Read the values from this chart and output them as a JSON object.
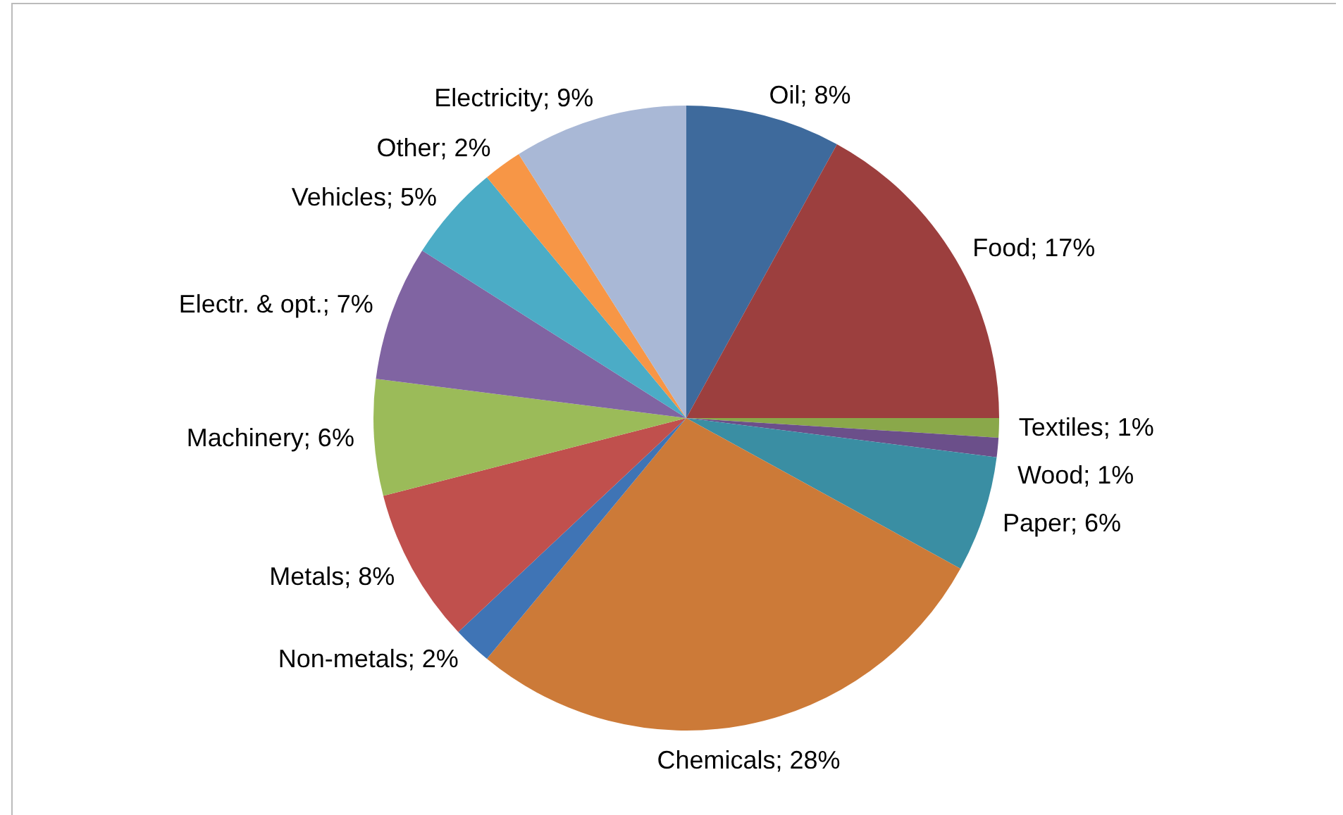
{
  "chart_data": {
    "type": "pie",
    "categories": [
      "Oil",
      "Food",
      "Textiles",
      "Wood",
      "Paper",
      "Chemicals",
      "Non-metals",
      "Metals",
      "Machinery",
      "Electr. & opt.",
      "Vehicles",
      "Other",
      "Electricity"
    ],
    "values": [
      8,
      17,
      1,
      1,
      6,
      28,
      2,
      8,
      6,
      7,
      5,
      2,
      9
    ],
    "colors": [
      "#3e6a9c",
      "#9c3f3e",
      "#8aa84a",
      "#6b4f8a",
      "#3a8ea3",
      "#cc7a38",
      "#3f74b5",
      "#c0504d",
      "#9bbb59",
      "#8064a2",
      "#4bacc6",
      "#f79646",
      "#a9b8d6"
    ],
    "value_labels": [
      "8%",
      "17%",
      "1%",
      "1%",
      "6%",
      "28%",
      "2%",
      "8%",
      "6%",
      "7%",
      "5%",
      "2%",
      "9%"
    ],
    "legend": false
  }
}
